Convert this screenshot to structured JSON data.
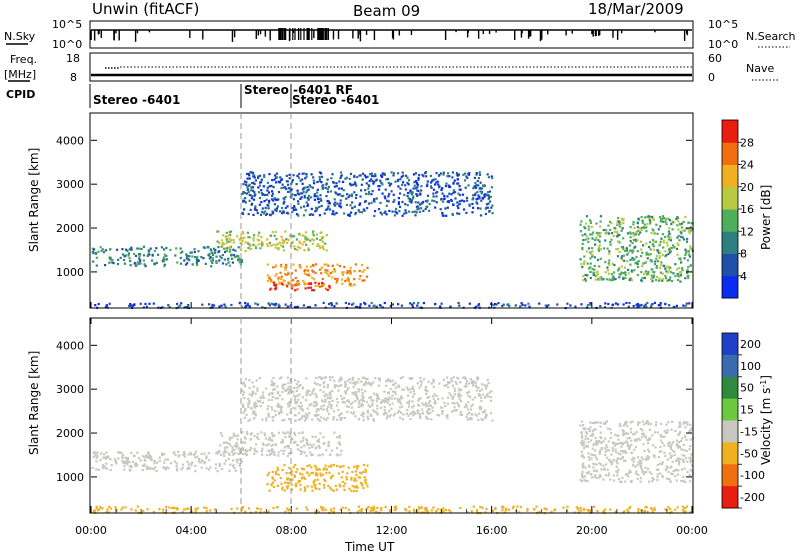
{
  "header": {
    "title": "Unwin (fitACF)",
    "beam": "Beam 09",
    "date": "18/Mar/2009"
  },
  "status_panels": {
    "nsky_label": "N.Sky",
    "nsearch_label": "N.Search",
    "nsky_ticks": [
      "10^5",
      "10^0"
    ],
    "nsearch_ticks": [
      "10^5",
      "10^0"
    ],
    "freq_label": "Freq.",
    "freq_unit": "[MHz]",
    "freq_ticks": [
      "18",
      "8"
    ],
    "nave_label": "Nave",
    "nave_ticks": [
      "60",
      "0"
    ],
    "cpid_label": "CPID",
    "cpid_entries": [
      {
        "text": "Stereo -6401",
        "start_hour": 0.0
      },
      {
        "text": "Stereo -6401 RF",
        "start_hour": 6.0
      },
      {
        "text": "Stereo -6401",
        "start_hour": 8.0
      }
    ]
  },
  "chart_data": [
    {
      "type": "heatmap",
      "name": "power",
      "ylabel": "Slant Range [km]",
      "y_ticks": [
        "1000",
        "2000",
        "3000",
        "4000"
      ],
      "ylim": [
        200,
        4600
      ],
      "xlim": [
        0,
        24
      ],
      "colorbar": {
        "label": "Power [dB]",
        "ticks": [
          "4",
          "8",
          "12",
          "16",
          "20",
          "24",
          "28"
        ],
        "range": [
          0,
          32
        ],
        "colors": [
          "#0a2cf0",
          "#1f4fa8",
          "#2e7f80",
          "#4fae5c",
          "#b8c840",
          "#f0b020",
          "#f07010",
          "#e81e10"
        ]
      },
      "regions": [
        {
          "x0": 0.0,
          "x1": 6.0,
          "y0": 1150,
          "y1": 1600,
          "level": 10
        },
        {
          "x0": 5.0,
          "x1": 9.5,
          "y0": 1500,
          "y1": 1950,
          "level": 18
        },
        {
          "x0": 7.0,
          "x1": 11.0,
          "y0": 700,
          "y1": 1200,
          "level": 24
        },
        {
          "x0": 7.0,
          "x1": 9.5,
          "y0": 600,
          "y1": 780,
          "level": 30
        },
        {
          "x0": 19.5,
          "x1": 24.0,
          "y0": 800,
          "y1": 2300,
          "level": 14
        },
        {
          "x0": 6.0,
          "x1": 16.0,
          "y0": 2300,
          "y1": 3300,
          "level": 6
        },
        {
          "x0": 0.0,
          "x1": 24.0,
          "y0": 200,
          "y1": 320,
          "level": 5
        }
      ]
    },
    {
      "type": "heatmap",
      "name": "velocity",
      "ylabel": "Slant Range [km]",
      "y_ticks": [
        "1000",
        "2000",
        "3000",
        "4000"
      ],
      "ylim": [
        200,
        4600
      ],
      "xlim": [
        0,
        24
      ],
      "x_ticks": [
        "00:00",
        "04:00",
        "08:00",
        "12:00",
        "16:00",
        "20:00",
        "00:00"
      ],
      "xlabel": "Time UT",
      "colorbar": {
        "label": "Velocity [m s^-1]",
        "ticks": [
          "200",
          "100",
          "50",
          "15",
          "-15",
          "-50",
          "-100",
          "-200"
        ],
        "colors": [
          "#2040c8",
          "#3a6ab0",
          "#2f8a3e",
          "#6cc83c",
          "#c8c8c0",
          "#f0b020",
          "#f07010",
          "#e81e10"
        ]
      },
      "regions": [
        {
          "x0": 0.0,
          "x1": 6.0,
          "y0": 1150,
          "y1": 1600,
          "vel": 0
        },
        {
          "x0": 5.0,
          "x1": 10.0,
          "y0": 1500,
          "y1": 2050,
          "vel": 0
        },
        {
          "x0": 7.0,
          "x1": 11.0,
          "y0": 700,
          "y1": 1300,
          "vel": -40
        },
        {
          "x0": 19.5,
          "x1": 24.0,
          "y0": 900,
          "y1": 2300,
          "vel": 0
        },
        {
          "x0": 6.0,
          "x1": 16.0,
          "y0": 2300,
          "y1": 3300,
          "vel": 0
        },
        {
          "x0": 0.0,
          "x1": 24.0,
          "y0": 200,
          "y1": 350,
          "vel": -40
        }
      ]
    }
  ]
}
